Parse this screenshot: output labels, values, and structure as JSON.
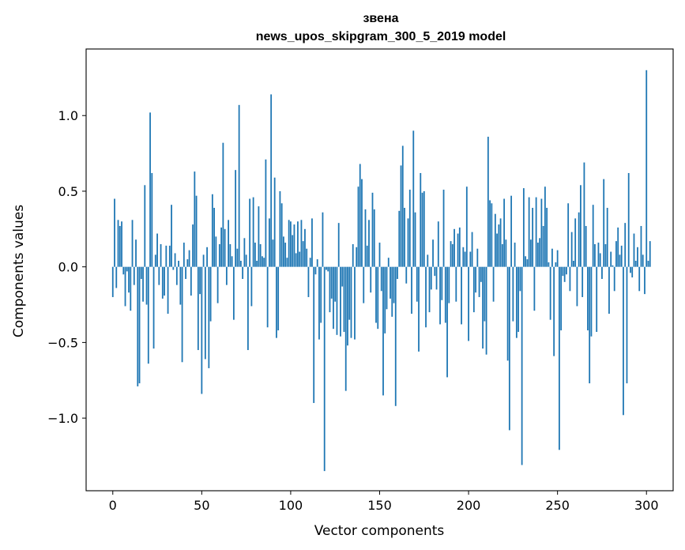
{
  "chart_data": {
    "type": "bar",
    "title": "звена",
    "subtitle": "news_upos_skipgram_300_5_2019 model",
    "xlabel": "Vector components",
    "ylabel": "Components values",
    "xlim": [
      -15,
      315
    ],
    "ylim": [
      -1.48,
      1.44
    ],
    "xticks": [
      0,
      50,
      100,
      150,
      200,
      250,
      300
    ],
    "xtick_labels": [
      "0",
      "50",
      "100",
      "150",
      "200",
      "250",
      "300"
    ],
    "yticks": [
      -1.0,
      -0.5,
      0.0,
      0.5,
      1.0
    ],
    "ytick_labels": [
      "−1.0",
      "−0.5",
      "0.0",
      "0.5",
      "1.0"
    ],
    "bar_color": "#1f77b4",
    "values": [
      -0.2,
      0.45,
      -0.14,
      0.31,
      0.27,
      0.3,
      -0.05,
      -0.26,
      -0.03,
      -0.17,
      -0.29,
      0.31,
      -0.12,
      0.18,
      -0.79,
      -0.77,
      -0.08,
      -0.23,
      0.54,
      -0.25,
      -0.64,
      1.02,
      0.62,
      -0.54,
      0.08,
      0.22,
      -0.12,
      0.15,
      -0.21,
      -0.19,
      0.14,
      -0.31,
      0.14,
      0.41,
      -0.02,
      0.09,
      -0.12,
      0.04,
      -0.25,
      -0.63,
      0.16,
      -0.08,
      0.05,
      0.11,
      -0.19,
      0.28,
      0.63,
      0.47,
      -0.55,
      -0.18,
      -0.84,
      0.08,
      -0.61,
      0.13,
      -0.67,
      -0.36,
      0.48,
      0.39,
      0.2,
      -0.24,
      0.15,
      0.26,
      0.82,
      0.25,
      -0.12,
      0.31,
      0.15,
      0.07,
      -0.35,
      0.64,
      0.12,
      1.07,
      0.04,
      -0.08,
      0.19,
      0.08,
      -0.55,
      0.45,
      -0.26,
      0.46,
      0.16,
      0.04,
      0.4,
      0.15,
      0.07,
      0.06,
      0.71,
      -0.4,
      0.32,
      1.14,
      0.18,
      0.59,
      -0.47,
      -0.42,
      0.5,
      0.42,
      0.2,
      0.16,
      0.06,
      0.31,
      0.3,
      0.21,
      0.28,
      0.09,
      0.3,
      0.1,
      0.31,
      0.17,
      0.25,
      0.12,
      -0.2,
      0.06,
      0.32,
      -0.9,
      -0.05,
      0.05,
      -0.48,
      -0.37,
      0.36,
      -1.35,
      -0.02,
      -0.03,
      -0.3,
      -0.21,
      -0.41,
      -0.23,
      -0.45,
      0.29,
      -0.46,
      -0.13,
      -0.43,
      -0.82,
      -0.52,
      -0.35,
      -0.47,
      0.15,
      -0.48,
      0.13,
      0.53,
      0.68,
      0.58,
      -0.24,
      0.38,
      0.14,
      0.31,
      -0.17,
      0.49,
      0.38,
      -0.37,
      -0.41,
      0.16,
      -0.16,
      -0.85,
      -0.44,
      -0.28,
      0.06,
      -0.21,
      -0.33,
      -0.24,
      -0.92,
      -0.08,
      0.37,
      0.67,
      0.8,
      0.39,
      -0.11,
      0.32,
      0.51,
      -0.31,
      0.9,
      0.36,
      -0.23,
      -0.56,
      0.62,
      0.49,
      0.5,
      -0.4,
      0.08,
      -0.3,
      -0.15,
      0.18,
      -0.06,
      -0.15,
      0.3,
      -0.38,
      -0.22,
      0.51,
      -0.37,
      -0.73,
      -0.24,
      0.17,
      0.15,
      0.25,
      -0.23,
      0.22,
      0.26,
      -0.38,
      0.13,
      0.1,
      0.53,
      -0.49,
      0.1,
      0.23,
      -0.3,
      -0.17,
      0.12,
      -0.2,
      -0.1,
      -0.54,
      -0.36,
      -0.58,
      0.86,
      0.44,
      0.42,
      -0.23,
      0.35,
      0.22,
      0.28,
      0.32,
      0.15,
      0.45,
      0.18,
      -0.62,
      -1.08,
      0.47,
      -0.36,
      0.16,
      -0.47,
      -0.43,
      -0.16,
      -1.31,
      0.52,
      0.07,
      0.05,
      0.46,
      0.18,
      0.39,
      -0.29,
      0.46,
      0.16,
      0.19,
      0.45,
      0.27,
      0.53,
      0.39,
      0.03,
      -0.35,
      0.12,
      -0.59,
      0.03,
      0.11,
      -1.21,
      -0.42,
      -0.06,
      -0.1,
      -0.05,
      0.42,
      -0.16,
      0.23,
      0.04,
      0.32,
      -0.26,
      0.36,
      0.54,
      -0.2,
      0.69,
      0.27,
      -0.42,
      -0.77,
      -0.46,
      0.41,
      0.15,
      -0.43,
      0.16,
      0.09,
      -0.08,
      0.58,
      0.15,
      0.39,
      -0.31,
      0.1,
      0.01,
      -0.16,
      0.17,
      0.26,
      0.08,
      0.14,
      -0.98,
      0.29,
      -0.77,
      0.62,
      -0.04,
      -0.07,
      0.22,
      0.04,
      0.13,
      -0.16,
      0.27,
      0.08,
      -0.18,
      1.3,
      0.04,
      0.17
    ]
  }
}
